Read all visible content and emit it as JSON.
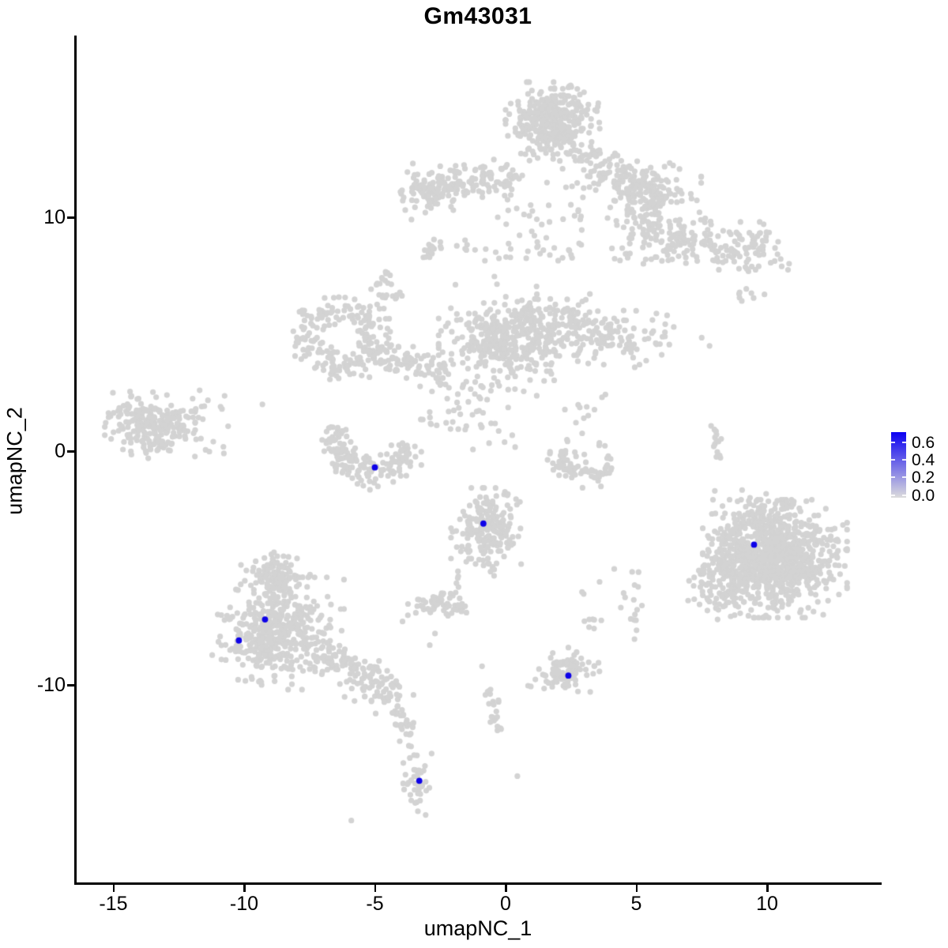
{
  "title": "Gm43031",
  "axes": {
    "x": {
      "label": "umapNC_1",
      "ticks": [
        {
          "value": -15,
          "label": "-15"
        },
        {
          "value": -10,
          "label": "-10"
        },
        {
          "value": -5,
          "label": "-5"
        },
        {
          "value": 0,
          "label": "0"
        },
        {
          "value": 5,
          "label": "5"
        },
        {
          "value": 10,
          "label": "10"
        }
      ]
    },
    "y": {
      "label": "umapNC_2",
      "ticks": [
        {
          "value": 10,
          "label": "10"
        },
        {
          "value": 0,
          "label": "0"
        },
        {
          "value": -10,
          "label": "-10"
        }
      ]
    }
  },
  "legend": {
    "tick_entries": [
      {
        "label": "0.6",
        "value": 0.6
      },
      {
        "label": "0.4",
        "value": 0.4
      },
      {
        "label": "0.2",
        "value": 0.2
      },
      {
        "label": "0.0",
        "value": 0.0
      }
    ],
    "high_color": "#0b00f2",
    "low_color": "#dcdcdc"
  },
  "colors": {
    "point_gray": "#d3d3d3",
    "point_blue": "#0d00e8",
    "axis": "#000000"
  },
  "chart_data": {
    "type": "scatter",
    "title": "Gm43031",
    "xlabel": "umapNC_1",
    "ylabel": "umapNC_2",
    "xlim": [
      -16.5,
      14.4
    ],
    "ylim": [
      -18.6,
      17.8
    ],
    "xticks": [
      -15,
      -10,
      -5,
      0,
      5,
      10
    ],
    "yticks": [
      10,
      0,
      -10
    ],
    "grid": false,
    "legend_position": "right",
    "color_scale": {
      "low": 0.0,
      "high": 0.7,
      "breaks": [
        0.0,
        0.2,
        0.4,
        0.6
      ],
      "meaning": "Gm43031 expression"
    },
    "background_points_value": 0.0,
    "clusters": {
      "blobs": [
        {
          "cx": 1.8,
          "cy": 14.1,
          "sx": 0.75,
          "sy": 0.7,
          "n": 380
        },
        {
          "cx": -2.9,
          "cy": 11.1,
          "sx": 0.55,
          "sy": 0.5,
          "n": 70
        },
        {
          "cx": 5.8,
          "cy": 11.0,
          "sx": 0.7,
          "sy": 0.55,
          "n": 80
        },
        {
          "cx": 9.3,
          "cy": 8.6,
          "sx": 0.7,
          "sy": 0.5,
          "n": 60
        },
        {
          "cx": 0.2,
          "cy": 4.8,
          "sx": 1.15,
          "sy": 0.75,
          "n": 380
        },
        {
          "cx": -13.6,
          "cy": 1.15,
          "sx": 0.72,
          "sy": 0.62,
          "n": 230
        },
        {
          "cx": -0.6,
          "cy": -3.3,
          "sx": 0.62,
          "sy": 0.72,
          "n": 190
        },
        {
          "cx": 10.3,
          "cy": -4.6,
          "sx": 1.15,
          "sy": 1.05,
          "n": 950
        },
        {
          "cx": 8.3,
          "cy": -5.4,
          "sx": 0.55,
          "sy": 0.75,
          "n": 130
        },
        {
          "cx": 9.7,
          "cy": -2.6,
          "sx": 0.6,
          "sy": 0.4,
          "n": 60
        },
        {
          "cx": -8.8,
          "cy": -5.5,
          "sx": 0.55,
          "sy": 0.5,
          "n": 120
        },
        {
          "cx": -8.7,
          "cy": -7.8,
          "sx": 1.05,
          "sy": 1.0,
          "n": 430
        },
        {
          "cx": -3.45,
          "cy": -14.3,
          "sx": 0.28,
          "sy": 0.75,
          "n": 40
        },
        {
          "cx": 2.3,
          "cy": -9.5,
          "sx": 0.6,
          "sy": 0.38,
          "n": 100
        },
        {
          "cx": -2.6,
          "cy": -6.6,
          "sx": 0.6,
          "sy": 0.3,
          "n": 65
        },
        {
          "cx": 5.0,
          "cy": -7.2,
          "sx": 0.15,
          "sy": 0.35,
          "n": 8
        },
        {
          "cx": 3.3,
          "cy": -7.4,
          "sx": 0.15,
          "sy": 0.25,
          "n": 6
        },
        {
          "cx": 9.3,
          "cy": 6.7,
          "sx": 0.25,
          "sy": 0.12,
          "n": 7
        }
      ],
      "bands": [
        {
          "x1": -3.3,
          "y1": 11.2,
          "x2": 0.3,
          "y2": 11.8,
          "jx": 0.3,
          "jy": 0.35,
          "n": 140
        },
        {
          "x1": 2.9,
          "y1": 12.4,
          "x2": 6.2,
          "y2": 10.7,
          "jx": 0.35,
          "jy": 0.4,
          "n": 150
        },
        {
          "x1": 4.3,
          "y1": 9.8,
          "x2": 9.6,
          "y2": 8.3,
          "jx": 0.5,
          "jy": 0.45,
          "n": 110
        },
        {
          "x1": -3.1,
          "y1": 8.3,
          "x2": -2.6,
          "y2": 8.9,
          "jx": 0.12,
          "jy": 0.12,
          "n": 18
        },
        {
          "x1": -4.8,
          "y1": 6.3,
          "x2": -4.2,
          "y2": 3.9,
          "jx": 0.18,
          "jy": 0.18,
          "n": 14
        },
        {
          "x1": -4.9,
          "y1": 4.0,
          "x2": -2.2,
          "y2": 3.4,
          "jx": 0.3,
          "jy": 0.3,
          "n": 80
        },
        {
          "x1": 2.6,
          "y1": 5.0,
          "x2": 5.9,
          "y2": 4.7,
          "jx": 0.4,
          "jy": 0.5,
          "n": 110
        },
        {
          "x1": 0.8,
          "y1": 6.0,
          "x2": 3.3,
          "y2": 5.8,
          "jx": 0.4,
          "jy": 0.4,
          "n": 70
        },
        {
          "x1": -6.9,
          "y1": -8.5,
          "x2": -4.3,
          "y2": -10.5,
          "jx": 0.5,
          "jy": 0.4,
          "n": 130
        },
        {
          "x1": -4.3,
          "y1": -10.8,
          "x2": -3.7,
          "y2": -12.0,
          "jx": 0.2,
          "jy": 0.2,
          "n": 25
        },
        {
          "x1": -0.65,
          "y1": -10.2,
          "x2": -0.2,
          "y2": -12.0,
          "jx": 0.15,
          "jy": 0.15,
          "n": 22
        },
        {
          "x1": 8.0,
          "y1": 1.05,
          "x2": 8.2,
          "y2": -0.5,
          "jx": 0.12,
          "jy": 0.12,
          "n": 14
        },
        {
          "x1": -1.3,
          "y1": -4.4,
          "x2": -2.0,
          "y2": -6.0,
          "jx": 0.1,
          "jy": 0.1,
          "n": 8
        },
        {
          "x1": -1.1,
          "y1": -4.6,
          "x2": -0.3,
          "y2": -5.1,
          "jx": 0.15,
          "jy": 0.15,
          "n": 10
        }
      ],
      "arcs": [
        {
          "cx": -6.35,
          "cy": 4.85,
          "r": 1.25,
          "a1": 0,
          "a2": 360,
          "jitter": 0.33,
          "n": 200
        },
        {
          "cx": -5.1,
          "cy": 0.55,
          "r": 1.5,
          "a1": 160,
          "a2": 350,
          "jitter": 0.3,
          "n": 170
        },
        {
          "cx": 3.1,
          "cy": 0.1,
          "r": 1.15,
          "a1": 185,
          "a2": 340,
          "jitter": 0.25,
          "n": 75
        },
        {
          "cx": -4.35,
          "cy": 7.0,
          "r": 0.45,
          "a1": 90,
          "a2": 330,
          "jitter": 0.15,
          "n": 25
        }
      ],
      "sprays": [
        {
          "x1": 4.0,
          "y1": 8.0,
          "x2": 8.0,
          "y2": 10.3,
          "n": 60
        },
        {
          "x1": 0.0,
          "y1": 8.1,
          "x2": 3.0,
          "y2": 11.5,
          "n": 50
        },
        {
          "x1": -3.4,
          "y1": 0.9,
          "x2": -0.4,
          "y2": 3.0,
          "n": 45
        },
        {
          "x1": -12.2,
          "y1": -0.3,
          "x2": -10.6,
          "y2": 2.4,
          "n": 18
        },
        {
          "x1": 2.2,
          "y1": -0.3,
          "x2": 3.9,
          "y2": 2.6,
          "n": 20
        },
        {
          "x1": 2.8,
          "y1": -7.3,
          "x2": 5.3,
          "y2": -4.6,
          "n": 12
        },
        {
          "x1": -1.5,
          "y1": 0.0,
          "x2": 1.5,
          "y2": 3.2,
          "n": 22
        },
        {
          "x1": -2.0,
          "y1": 7.0,
          "x2": 1.5,
          "y2": 9.5,
          "n": 14
        }
      ],
      "singles": [
        [
          7.5,
          4.85
        ],
        [
          7.8,
          4.5
        ],
        [
          8.0,
          -1.7
        ],
        [
          9.9,
          6.7
        ],
        [
          2.4,
          -8.4
        ],
        [
          3.2,
          -7.2
        ],
        [
          -2.7,
          -7.8
        ],
        [
          -2.9,
          -8.3
        ],
        [
          0.45,
          -13.9
        ],
        [
          -0.9,
          -9.2
        ],
        [
          -5.9,
          -15.8
        ],
        [
          -4.3,
          -11.2
        ],
        [
          -4.0,
          -11.7
        ],
        [
          -3.8,
          -12.1
        ],
        [
          -3.7,
          -12.6
        ],
        [
          -3.5,
          -13.0
        ],
        [
          -10.9,
          1.9
        ],
        [
          -11.7,
          2.6
        ],
        [
          -9.3,
          2.0
        ],
        [
          -0.3,
          10.0
        ],
        [
          1.0,
          9.4
        ],
        [
          -1.5,
          8.6
        ]
      ]
    },
    "highlighted_points": [
      {
        "x": -5.0,
        "y": -0.7,
        "value": 0.6
      },
      {
        "x": -0.85,
        "y": -3.1,
        "value": 0.65
      },
      {
        "x": -9.2,
        "y": -7.2,
        "value": 0.7
      },
      {
        "x": -10.2,
        "y": -8.1,
        "value": 0.6
      },
      {
        "x": 2.4,
        "y": -9.6,
        "value": 0.65
      },
      {
        "x": 9.5,
        "y": -4.0,
        "value": 0.6
      },
      {
        "x": -3.3,
        "y": -14.1,
        "value": 0.65
      }
    ]
  }
}
